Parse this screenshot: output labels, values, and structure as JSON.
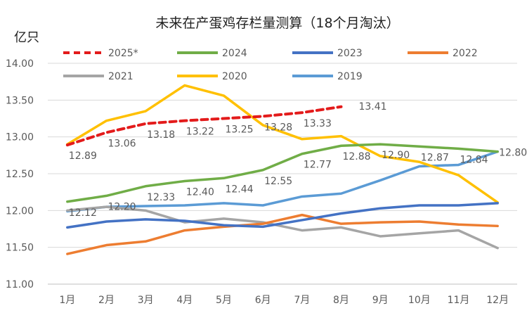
{
  "chart_data": {
    "type": "line",
    "title": "未来在产蛋鸡存栏量测算（18个月淘汰）",
    "ylabel": "亿只",
    "xlabel": "",
    "categories": [
      "1月",
      "2月",
      "3月",
      "4月",
      "5月",
      "6月",
      "7月",
      "8月",
      "9月",
      "10月",
      "11月",
      "12月"
    ],
    "ylim": [
      11.0,
      14.0
    ],
    "yticks": [
      "11.00",
      "11.50",
      "12.00",
      "12.50",
      "13.00",
      "13.50",
      "14.00"
    ],
    "grid": true,
    "legend_position": "top",
    "series": [
      {
        "name": "2025*",
        "color": "#e31b1b",
        "dashed": true,
        "values": [
          12.89,
          13.06,
          13.18,
          13.22,
          13.25,
          13.28,
          13.33,
          13.41,
          null,
          null,
          null,
          null
        ],
        "labels": [
          "12.89",
          "13.06",
          "13.18",
          "13.22",
          "13.25",
          "13.28",
          "13.33",
          "13.41",
          null,
          null,
          null,
          null
        ]
      },
      {
        "name": "2024",
        "color": "#70ad47",
        "dashed": false,
        "values": [
          12.12,
          12.2,
          12.33,
          12.4,
          12.44,
          12.55,
          12.77,
          12.88,
          12.9,
          12.87,
          12.84,
          12.8
        ],
        "labels": [
          "12.12",
          "12.20",
          "12.33",
          "12.40",
          "12.44",
          "12.55",
          "12.77",
          "12.88",
          "12.90",
          "12.87",
          "12.84",
          "12.80"
        ]
      },
      {
        "name": "2023",
        "color": "#4472c4",
        "dashed": false,
        "values": [
          11.77,
          11.85,
          11.88,
          11.86,
          11.8,
          11.78,
          11.87,
          11.96,
          12.03,
          12.07,
          12.07,
          12.1
        ],
        "labels": []
      },
      {
        "name": "2022",
        "color": "#ed7d31",
        "dashed": false,
        "values": [
          11.41,
          11.53,
          11.58,
          11.73,
          11.78,
          11.82,
          11.94,
          11.82,
          11.84,
          11.85,
          11.81,
          11.79
        ],
        "labels": []
      },
      {
        "name": "2021",
        "color": "#a5a5a5",
        "dashed": false,
        "values": [
          12.0,
          12.05,
          12.0,
          11.84,
          11.89,
          11.84,
          11.73,
          11.77,
          11.65,
          11.69,
          11.73,
          11.49
        ],
        "labels": []
      },
      {
        "name": "2020",
        "color": "#ffc000",
        "dashed": false,
        "values": [
          12.9,
          13.22,
          13.35,
          13.7,
          13.56,
          13.16,
          12.97,
          13.01,
          12.74,
          12.66,
          12.48,
          12.11
        ],
        "labels": []
      },
      {
        "name": "2019",
        "color": "#5b9bd5",
        "dashed": false,
        "values": [
          11.99,
          12.05,
          12.06,
          12.07,
          12.1,
          12.07,
          12.19,
          12.23,
          12.41,
          12.6,
          12.62,
          12.8
        ],
        "labels": []
      }
    ]
  }
}
